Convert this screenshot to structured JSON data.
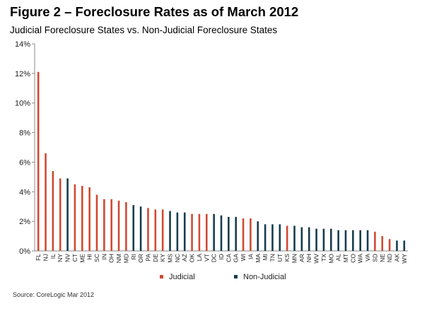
{
  "title": "Figure 2 – Foreclosure Rates as of March 2012",
  "subtitle": "Judicial Foreclosure States vs. Non-Judicial Foreclosure States",
  "source": "Source: CoreLogic Mar 2012",
  "colors": {
    "judicial": "#d04a32",
    "non_judicial": "#173d4f",
    "axis": "#888888"
  },
  "chart_data": {
    "type": "bar",
    "title": "Figure 2 – Foreclosure Rates as of March 2012",
    "subtitle": "Judicial Foreclosure States vs. Non-Judicial Foreclosure States",
    "categories": [
      "FL",
      "NJ",
      "IL",
      "NY",
      "NV",
      "CT",
      "ME",
      "HI",
      "SC",
      "IN",
      "OH",
      "NM",
      "MD",
      "RI",
      "OR",
      "PA",
      "DE",
      "KY",
      "MS",
      "NC",
      "AZ",
      "OK",
      "LA",
      "VT",
      "DC",
      "ID",
      "CA",
      "GA",
      "WI",
      "IA",
      "MA",
      "MI",
      "TN",
      "UT",
      "KS",
      "MN",
      "AR",
      "NH",
      "WV",
      "TX",
      "MO",
      "AL",
      "MT",
      "CO",
      "WA",
      "VA",
      "SD",
      "NE",
      "ND",
      "AK",
      "WY"
    ],
    "values": [
      12.1,
      6.6,
      5.4,
      4.9,
      4.9,
      4.5,
      4.4,
      4.3,
      3.8,
      3.5,
      3.5,
      3.4,
      3.3,
      3.1,
      3.0,
      2.9,
      2.8,
      2.8,
      2.7,
      2.6,
      2.6,
      2.5,
      2.5,
      2.5,
      2.5,
      2.4,
      2.3,
      2.3,
      2.2,
      2.2,
      2.0,
      1.8,
      1.8,
      1.8,
      1.7,
      1.7,
      1.6,
      1.6,
      1.5,
      1.5,
      1.5,
      1.4,
      1.4,
      1.4,
      1.4,
      1.4,
      1.3,
      1.0,
      0.8,
      0.7,
      0.7
    ],
    "groups": [
      "Judicial",
      "Judicial",
      "Judicial",
      "Judicial",
      "Non-Judicial",
      "Judicial",
      "Judicial",
      "Judicial",
      "Judicial",
      "Judicial",
      "Judicial",
      "Judicial",
      "Judicial",
      "Non-Judicial",
      "Non-Judicial",
      "Judicial",
      "Judicial",
      "Judicial",
      "Non-Judicial",
      "Non-Judicial",
      "Non-Judicial",
      "Judicial",
      "Judicial",
      "Judicial",
      "Non-Judicial",
      "Non-Judicial",
      "Non-Judicial",
      "Non-Judicial",
      "Judicial",
      "Judicial",
      "Non-Judicial",
      "Non-Judicial",
      "Non-Judicial",
      "Non-Judicial",
      "Judicial",
      "Non-Judicial",
      "Non-Judicial",
      "Non-Judicial",
      "Non-Judicial",
      "Non-Judicial",
      "Non-Judicial",
      "Non-Judicial",
      "Non-Judicial",
      "Non-Judicial",
      "Non-Judicial",
      "Non-Judicial",
      "Judicial",
      "Judicial",
      "Judicial",
      "Non-Judicial",
      "Non-Judicial"
    ],
    "ylim": [
      0,
      14
    ],
    "yticks": [
      "0%",
      "2%",
      "4%",
      "6%",
      "8%",
      "10%",
      "12%",
      "14%"
    ],
    "ytick_values": [
      0,
      2,
      4,
      6,
      8,
      10,
      12,
      14
    ],
    "legend": [
      {
        "name": "Judicial",
        "color": "#d04a32"
      },
      {
        "name": "Non-Judicial",
        "color": "#173d4f"
      }
    ],
    "legend_position": "bottom",
    "grid": false
  }
}
